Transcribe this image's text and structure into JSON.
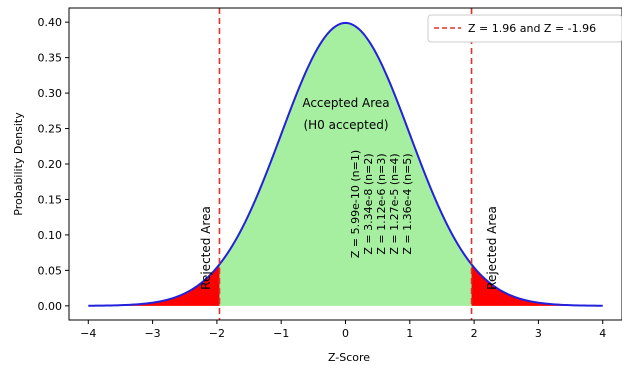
{
  "chart_data": {
    "type": "area",
    "title": "",
    "xlabel": "Z-Score",
    "ylabel": "Probability Density",
    "xlim": [
      -4.3,
      4.3
    ],
    "ylim": [
      -0.02,
      0.42
    ],
    "x_ticks": [
      -4,
      -3,
      -2,
      -1,
      0,
      1,
      2,
      3,
      4
    ],
    "x_tick_labels": [
      "−4",
      "−3",
      "−2",
      "−1",
      "0",
      "1",
      "2",
      "3",
      "4"
    ],
    "y_ticks": [
      0,
      0.05,
      0.1,
      0.15,
      0.2,
      0.25,
      0.3,
      0.35,
      0.4
    ],
    "y_tick_labels": [
      "0.00",
      "0.05",
      "0.10",
      "0.15",
      "0.20",
      "0.25",
      "0.30",
      "0.35",
      "0.40"
    ],
    "grid": false,
    "legend_position": "top-right",
    "series": [
      {
        "kind": "density-curve",
        "distribution": "standard normal",
        "x_range": [
          -4,
          4
        ],
        "peak": 0.399,
        "color": "#2222dd"
      },
      {
        "kind": "shaded-region",
        "x_range": [
          -1.96,
          1.96
        ],
        "color": "#a6eea0"
      },
      {
        "kind": "shaded-region",
        "x_range": [
          -4,
          -1.96
        ],
        "color": "#ff0000"
      },
      {
        "kind": "shaded-region",
        "x_range": [
          1.96,
          4
        ],
        "color": "#ff0000"
      },
      {
        "kind": "vertical-line",
        "name": "Z = 1.96 and Z = -1.96",
        "x_values": [
          -1.96,
          1.96
        ],
        "color": "#e0302a",
        "style": "dashed"
      }
    ],
    "legend": [
      {
        "label": "Z = 1.96 and Z = -1.96",
        "color": "#e0302a",
        "style": "dashed"
      }
    ],
    "annotations": {
      "accepted_line1": "Accepted Area",
      "accepted_line2": "(H0 accepted)",
      "rejected_left": "Rejected Area",
      "rejected_right": "Rejected Area",
      "z_values": [
        "Z = 5.99e-10 (n=1)",
        "Z = 3.34e-8 (n=2)",
        "Z = 1.12e-6 (n=3)",
        "Z = 1.27e-5 (n=4)",
        "Z = 1.36e-4 (n=5)"
      ]
    }
  }
}
